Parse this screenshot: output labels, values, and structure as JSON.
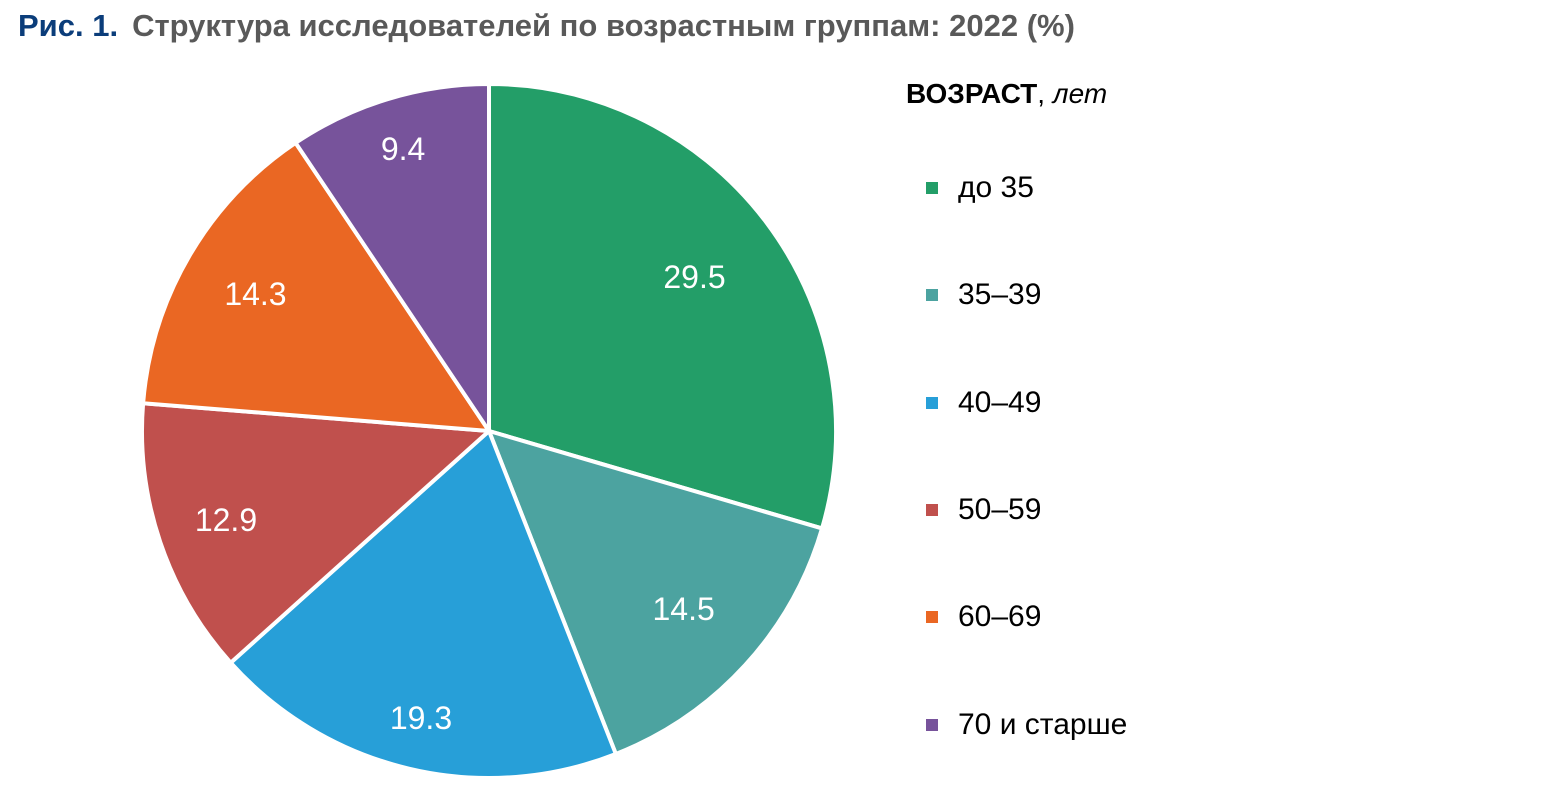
{
  "header": {
    "figure_label": "Рис. 1.",
    "title": "Структура исследователей по возрастным группам: 2022 (%)"
  },
  "legend": {
    "title_bold": "ВОЗРАСТ",
    "title_sep": ", ",
    "title_italic": "лет"
  },
  "chart_data": {
    "type": "pie",
    "title": "Структура исследователей по возрастным группам: 2022 (%)",
    "legend_title": "ВОЗРАСТ, лет",
    "legend_position": "right",
    "start_angle": "12 o'clock, clockwise",
    "categories": [
      "до 35",
      "35–39",
      "40–49",
      "50–59",
      "60–69",
      "70 и старше"
    ],
    "values": [
      29.5,
      14.5,
      19.3,
      12.9,
      14.3,
      9.4
    ],
    "labels": [
      "29.5",
      "14.5",
      "19.3",
      "12.9",
      "14.3",
      "9.4"
    ],
    "colors": [
      "#239e68",
      "#4ca3a0",
      "#279fd8",
      "#c0504d",
      "#ea6723",
      "#77539b"
    ]
  }
}
